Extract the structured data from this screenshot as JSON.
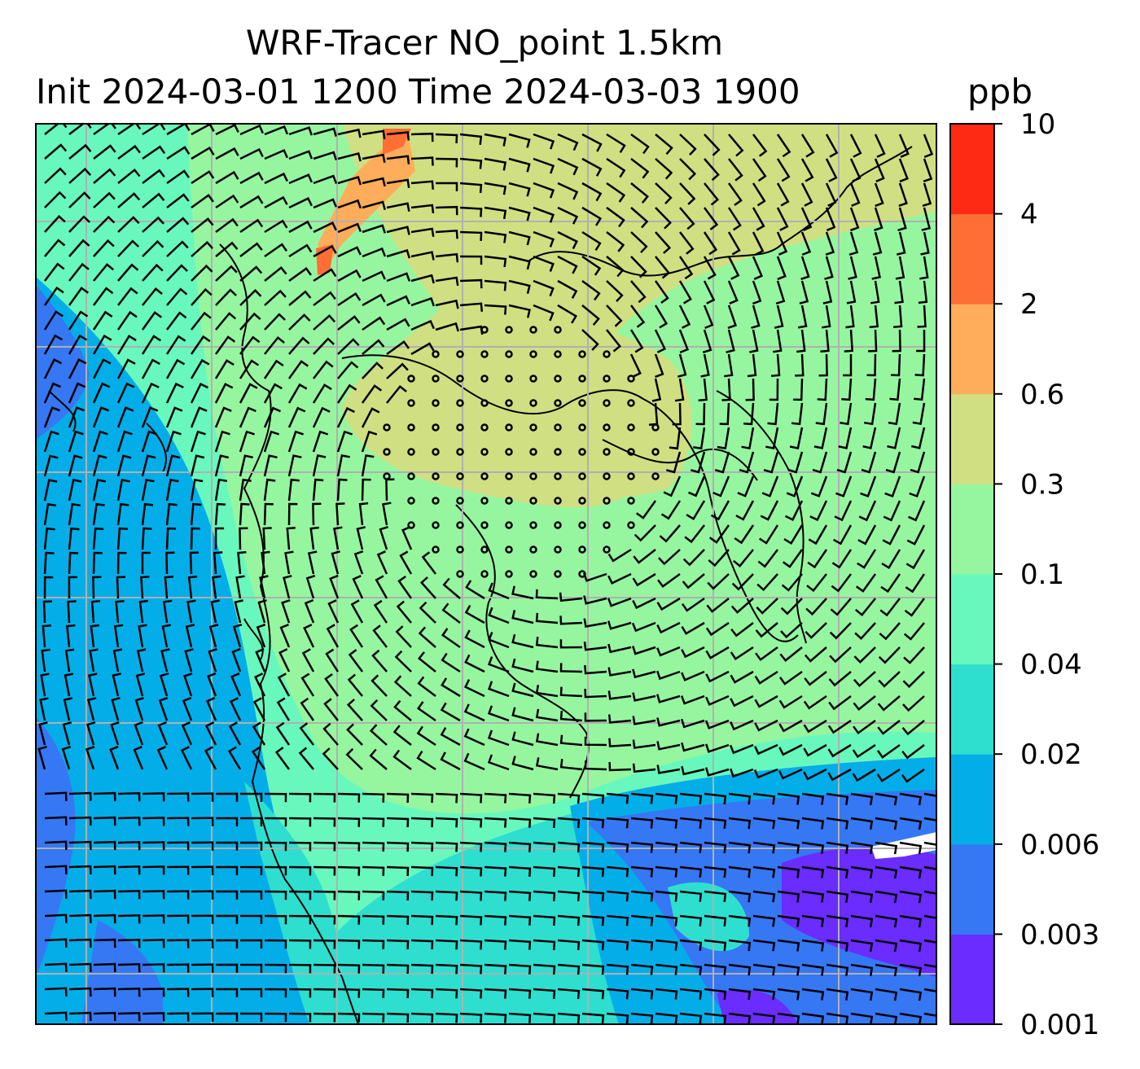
{
  "figure": {
    "title_line1": "WRF-Tracer NO_point 1.5km",
    "title_line2": "Init 2024-03-01 1200 Time 2024-03-03 1900",
    "colorbar_unit": "ppb"
  },
  "colorbar": {
    "levels": [
      "0.001",
      "0.003",
      "0.006",
      "0.02",
      "0.04",
      "0.1",
      "0.3",
      "0.6",
      "2",
      "4",
      "10"
    ],
    "colors": [
      "#6a2cff",
      "#3677f4",
      "#03aee8",
      "#2edfd0",
      "#68f8bd",
      "#96f6a0",
      "#d0df82",
      "#ffad5a",
      "#ff6e35",
      "#ff2a13"
    ]
  },
  "map": {
    "field": "NO_point tracer concentration with wind barbs",
    "gridlines": true,
    "gridline_color": "#b0b0b0",
    "coastline_color": "#000000"
  }
}
